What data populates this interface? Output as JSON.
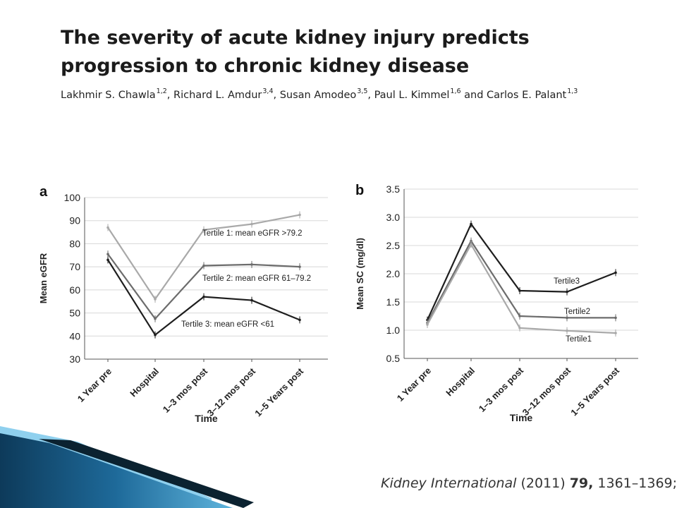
{
  "slide": {
    "title_line1": "The severity of acute kidney injury predicts",
    "title_line2": "progression to chronic kidney disease",
    "authors": [
      {
        "name": "Lakhmir S. Chawla",
        "sup": "1,2",
        "sep": ", "
      },
      {
        "name": "Richard L. Amdur",
        "sup": "3,4",
        "sep": ", "
      },
      {
        "name": "Susan Amodeo",
        "sup": "3,5",
        "sep": ", "
      },
      {
        "name": "Paul L. Kimmel",
        "sup": "1,6",
        "sep": " and "
      },
      {
        "name": "Carlos E. Palant",
        "sup": "1,3",
        "sep": ""
      }
    ],
    "citation": {
      "journal": "Kidney International",
      "year": "(2011)",
      "volume": "79,",
      "pages": "1361–1369;"
    },
    "colors": {
      "accent_dark": "#0b2230",
      "accent_blue": "#1e6a9a",
      "accent_light": "#5fb4dc"
    }
  },
  "chart_data": [
    {
      "type": "line",
      "panel_label": "a",
      "x": [
        "1 Year pre",
        "Hospital",
        "1–3 mos post",
        "3–12 mos post",
        "1–5 Years post"
      ],
      "xlabel": "Time",
      "ylabel": "Mean eGFR",
      "ylim": [
        30,
        100
      ],
      "yticks": [
        30,
        40,
        50,
        60,
        70,
        80,
        90,
        100
      ],
      "grid": true,
      "series": [
        {
          "name": "Tertile 1: mean eGFR >79.2",
          "values": [
            87,
            56,
            86,
            88.5,
            92.5
          ],
          "color": "#a9a9a9"
        },
        {
          "name": "Tertile 2: mean eGFR 61–79.2",
          "values": [
            75.5,
            47.5,
            70.5,
            71,
            70
          ],
          "color": "#6c6c6c"
        },
        {
          "name": "Tertile 3: mean eGFR <61",
          "values": [
            73,
            40.5,
            57,
            55.5,
            47
          ],
          "color": "#1e1e1e"
        }
      ]
    },
    {
      "type": "line",
      "panel_label": "b",
      "x": [
        "1 Year pre",
        "Hospital",
        "1–3 mos post",
        "3–12 mos post",
        "1–5 Years post"
      ],
      "xlabel": "Time",
      "ylabel": "Mean SC (mg/dl)",
      "ylim": [
        0.5,
        3.5
      ],
      "yticks": [
        "0.5",
        "1.0",
        "1.5",
        "2.0",
        "2.5",
        "3.0",
        "3.5"
      ],
      "grid": true,
      "series": [
        {
          "name": "Tertile3",
          "values": [
            1.18,
            2.88,
            1.7,
            1.68,
            2.02
          ],
          "color": "#1e1e1e"
        },
        {
          "name": "Tertile2",
          "values": [
            1.13,
            2.58,
            1.25,
            1.22,
            1.22
          ],
          "color": "#6c6c6c"
        },
        {
          "name": "Tertile1",
          "values": [
            1.1,
            2.52,
            1.04,
            0.99,
            0.95
          ],
          "color": "#a9a9a9"
        }
      ]
    }
  ]
}
